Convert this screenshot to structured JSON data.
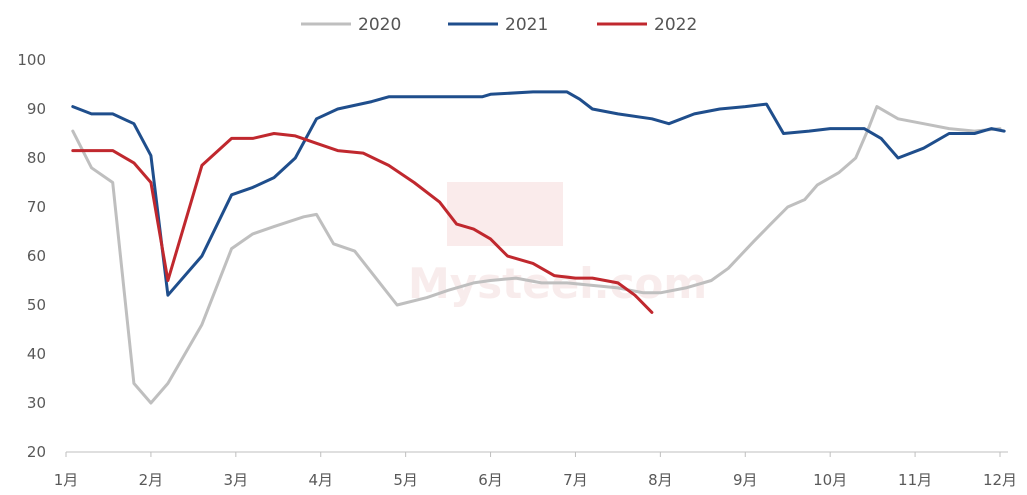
{
  "chart_data": {
    "type": "line",
    "title": "",
    "xlabel": "",
    "ylabel": "",
    "ylim": [
      20,
      100
    ],
    "yticks": [
      20,
      30,
      40,
      50,
      60,
      70,
      80,
      90,
      100
    ],
    "xlim": [
      1,
      12
    ],
    "xticks": [
      {
        "value": 1,
        "label": "1月"
      },
      {
        "value": 2,
        "label": "2月"
      },
      {
        "value": 3,
        "label": "3月"
      },
      {
        "value": 4,
        "label": "4月"
      },
      {
        "value": 5,
        "label": "5月"
      },
      {
        "value": 6,
        "label": "6月"
      },
      {
        "value": 7,
        "label": "7月"
      },
      {
        "value": 8,
        "label": "8月"
      },
      {
        "value": 9,
        "label": "9月"
      },
      {
        "value": 10,
        "label": "10月"
      },
      {
        "value": 11,
        "label": "11月"
      },
      {
        "value": 12,
        "label": "12月"
      }
    ],
    "grid": false,
    "legend_position": "top-center",
    "watermark": "Mysteel.com",
    "series": [
      {
        "name": "2020",
        "color": "#bfbfbf",
        "points": [
          [
            1.08,
            85.5
          ],
          [
            1.3,
            78
          ],
          [
            1.55,
            75
          ],
          [
            1.8,
            34
          ],
          [
            2.0,
            30
          ],
          [
            2.2,
            34
          ],
          [
            2.6,
            46
          ],
          [
            2.95,
            61.5
          ],
          [
            3.2,
            64.5
          ],
          [
            3.45,
            66
          ],
          [
            3.8,
            68
          ],
          [
            3.95,
            68.5
          ],
          [
            4.15,
            62.5
          ],
          [
            4.4,
            61
          ],
          [
            4.9,
            50
          ],
          [
            5.25,
            51.5
          ],
          [
            5.5,
            53
          ],
          [
            5.8,
            54.5
          ],
          [
            6.0,
            55
          ],
          [
            6.3,
            55.5
          ],
          [
            6.6,
            54.5
          ],
          [
            6.9,
            54.5
          ],
          [
            7.2,
            54
          ],
          [
            7.5,
            53.5
          ],
          [
            7.8,
            52.5
          ],
          [
            8.0,
            52.5
          ],
          [
            8.3,
            53.5
          ],
          [
            8.6,
            55
          ],
          [
            8.8,
            57.5
          ],
          [
            9.1,
            63
          ],
          [
            9.3,
            66.5
          ],
          [
            9.5,
            70
          ],
          [
            9.7,
            71.5
          ],
          [
            9.85,
            74.5
          ],
          [
            10.1,
            77
          ],
          [
            10.3,
            80
          ],
          [
            10.45,
            86
          ],
          [
            10.55,
            90.5
          ],
          [
            10.8,
            88
          ],
          [
            11.1,
            87
          ],
          [
            11.4,
            86
          ],
          [
            11.7,
            85.5
          ],
          [
            12.0,
            86
          ]
        ]
      },
      {
        "name": "2021",
        "color": "#1f4e8c",
        "points": [
          [
            1.08,
            90.5
          ],
          [
            1.3,
            89
          ],
          [
            1.55,
            89
          ],
          [
            1.8,
            87
          ],
          [
            2.0,
            80.5
          ],
          [
            2.2,
            52
          ],
          [
            2.6,
            60
          ],
          [
            2.95,
            72.5
          ],
          [
            3.2,
            74
          ],
          [
            3.45,
            76
          ],
          [
            3.7,
            80
          ],
          [
            3.95,
            88
          ],
          [
            4.2,
            90
          ],
          [
            4.6,
            91.5
          ],
          [
            4.8,
            92.5
          ],
          [
            5.0,
            92.5
          ],
          [
            5.5,
            92.5
          ],
          [
            5.9,
            92.5
          ],
          [
            6.0,
            93
          ],
          [
            6.5,
            93.5
          ],
          [
            6.9,
            93.5
          ],
          [
            7.05,
            92
          ],
          [
            7.2,
            90
          ],
          [
            7.5,
            89
          ],
          [
            7.9,
            88
          ],
          [
            8.1,
            87
          ],
          [
            8.4,
            89
          ],
          [
            8.7,
            90
          ],
          [
            9.0,
            90.5
          ],
          [
            9.25,
            91
          ],
          [
            9.45,
            85
          ],
          [
            9.75,
            85.5
          ],
          [
            10.0,
            86
          ],
          [
            10.4,
            86
          ],
          [
            10.6,
            84
          ],
          [
            10.8,
            80
          ],
          [
            11.1,
            82
          ],
          [
            11.4,
            85
          ],
          [
            11.7,
            85
          ],
          [
            11.9,
            86
          ],
          [
            12.05,
            85.5
          ]
        ]
      },
      {
        "name": "2022",
        "color": "#c0282e",
        "points": [
          [
            1.08,
            81.5
          ],
          [
            1.3,
            81.5
          ],
          [
            1.55,
            81.5
          ],
          [
            1.8,
            79
          ],
          [
            2.0,
            75
          ],
          [
            2.2,
            55
          ],
          [
            2.6,
            78.5
          ],
          [
            2.95,
            84
          ],
          [
            3.2,
            84
          ],
          [
            3.45,
            85
          ],
          [
            3.7,
            84.5
          ],
          [
            3.95,
            83
          ],
          [
            4.2,
            81.5
          ],
          [
            4.5,
            81
          ],
          [
            4.8,
            78.5
          ],
          [
            5.1,
            75
          ],
          [
            5.4,
            71
          ],
          [
            5.6,
            66.5
          ],
          [
            5.8,
            65.5
          ],
          [
            6.0,
            63.5
          ],
          [
            6.2,
            60
          ],
          [
            6.5,
            58.5
          ],
          [
            6.75,
            56
          ],
          [
            7.0,
            55.5
          ],
          [
            7.2,
            55.5
          ],
          [
            7.5,
            54.5
          ],
          [
            7.7,
            52
          ],
          [
            7.9,
            48.5
          ]
        ]
      }
    ]
  }
}
